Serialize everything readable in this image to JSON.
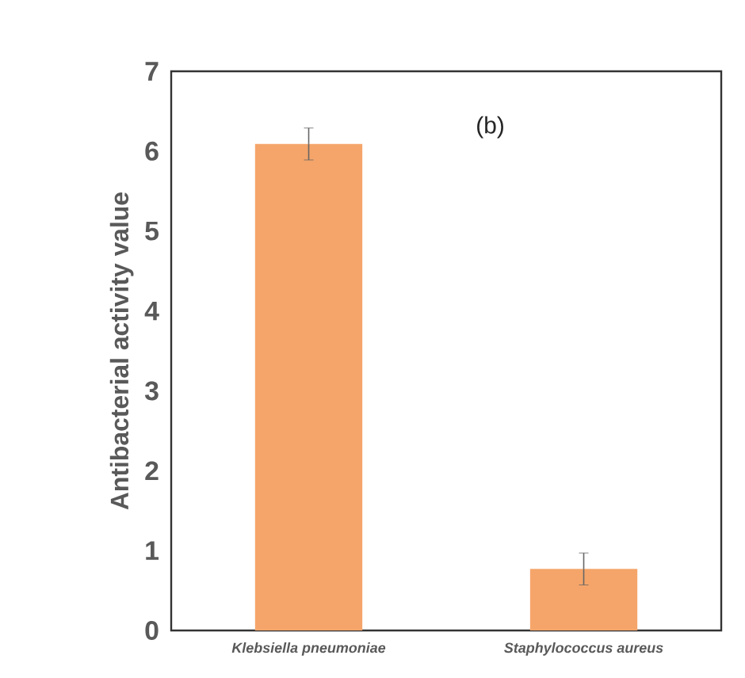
{
  "chart_data": {
    "type": "bar",
    "ylabel": "Antibacterial activity value",
    "categories": [
      "Klebsiella pneumoniae",
      "Staphylococcus aureus"
    ],
    "values": [
      6.09,
      0.77
    ],
    "errors": [
      0.2,
      0.2
    ],
    "color": "#f5a56a",
    "ylim": [
      0,
      7
    ],
    "yticks": [
      0,
      1,
      2,
      3,
      4,
      5,
      6,
      7
    ],
    "annotations": [
      "(b)"
    ]
  }
}
